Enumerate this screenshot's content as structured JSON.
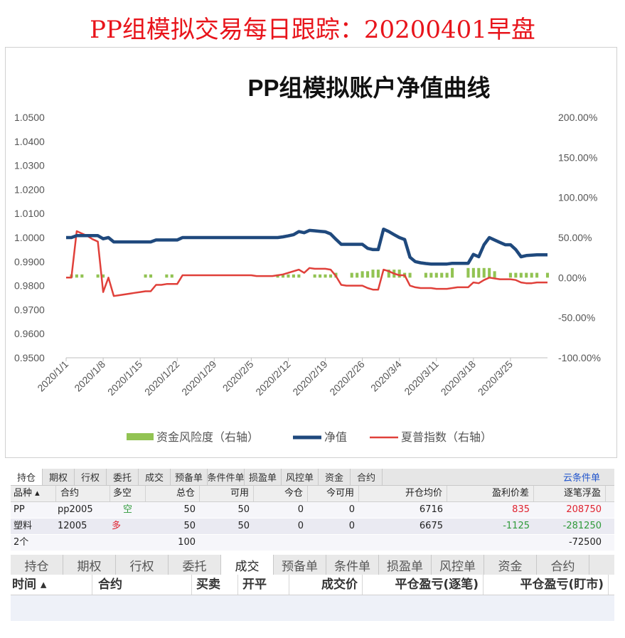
{
  "page_title": "PP组模拟交易每日跟踪：20200401早盘",
  "chart_data": {
    "type": "line",
    "title": "PP组模拟账户净值曲线",
    "y_left_ticks": [
      "1.0500",
      "1.0400",
      "1.0300",
      "1.0200",
      "1.0100",
      "1.0000",
      "0.9900",
      "0.9800",
      "0.9700",
      "0.9600",
      "0.9500"
    ],
    "y_right_ticks": [
      "200.00%",
      "150.00%",
      "100.00%",
      "50.00%",
      "0.00%",
      "-50.00%",
      "-100.00%"
    ],
    "ylim_left": [
      0.95,
      1.05
    ],
    "ylim_right": [
      -1.0,
      2.0
    ],
    "x_ticks": [
      "2020/1/1",
      "2020/1/8",
      "2020/1/15",
      "2020/1/22",
      "2020/1/29",
      "2020/2/5",
      "2020/2/12",
      "2020/2/19",
      "2020/2/26",
      "2020/3/4",
      "2020/3/11",
      "2020/3/18",
      "2020/3/25"
    ],
    "x_tick_days": [
      0,
      7,
      14,
      21,
      28,
      35,
      42,
      49,
      56,
      63,
      70,
      77,
      84
    ],
    "x_range_days": [
      0,
      91
    ],
    "series": [
      {
        "name": "资金风险度（右轴）",
        "type": "bar",
        "axis": "right",
        "color": "#92c353",
        "x": [
          1,
          2,
          3,
          6,
          7,
          15,
          16,
          19,
          20,
          40,
          41,
          42,
          43,
          44,
          47,
          48,
          49,
          50,
          51,
          54,
          55,
          56,
          57,
          58,
          59,
          61,
          62,
          63,
          64,
          65,
          68,
          69,
          70,
          71,
          72,
          73,
          76,
          77,
          78,
          79,
          80,
          81,
          84,
          85,
          86,
          87,
          88,
          89,
          91
        ],
        "values": [
          0.04,
          0.04,
          0.04,
          0.04,
          0.04,
          0.04,
          0.04,
          0.04,
          0.04,
          0.04,
          0.04,
          0.04,
          0.04,
          0.04,
          0.04,
          0.04,
          0.04,
          0.04,
          0.06,
          0.06,
          0.06,
          0.08,
          0.08,
          0.1,
          0.1,
          0.1,
          0.1,
          0.1,
          0.06,
          0.06,
          0.06,
          0.06,
          0.06,
          0.06,
          0.06,
          0.12,
          0.12,
          0.12,
          0.12,
          0.12,
          0.12,
          0.08,
          0.06,
          0.06,
          0.06,
          0.06,
          0.06,
          0.06,
          0.06
        ]
      },
      {
        "name": "净值",
        "type": "line",
        "axis": "left",
        "color": "#1f497d",
        "x": [
          0,
          1,
          2,
          3,
          4,
          5,
          6,
          7,
          8,
          9,
          10,
          11,
          12,
          13,
          14,
          15,
          16,
          17,
          18,
          19,
          20,
          21,
          22,
          23,
          24,
          25,
          26,
          27,
          28,
          29,
          30,
          31,
          32,
          33,
          34,
          35,
          36,
          37,
          38,
          39,
          40,
          41,
          42,
          43,
          44,
          45,
          46,
          47,
          48,
          49,
          50,
          51,
          52,
          53,
          54,
          55,
          56,
          57,
          58,
          59,
          60,
          61,
          62,
          63,
          64,
          65,
          66,
          67,
          68,
          69,
          70,
          71,
          72,
          73,
          74,
          75,
          76,
          77,
          78,
          79,
          80,
          81,
          82,
          83,
          84,
          85,
          86,
          87,
          88,
          89,
          90,
          91
        ],
        "values": [
          1.0,
          1.0,
          1.0008,
          1.0008,
          1.0008,
          1.0008,
          1.0008,
          0.9995,
          1.0,
          0.9982,
          0.9982,
          0.9982,
          0.9982,
          0.9982,
          0.9982,
          0.9982,
          0.9982,
          0.999,
          0.999,
          0.999,
          0.999,
          0.999,
          1.0,
          1.0,
          1.0,
          1.0,
          1.0,
          1.0,
          1.0,
          1.0,
          1.0,
          1.0,
          1.0,
          1.0,
          1.0,
          1.0,
          1.0,
          1.0,
          1.0,
          1.0,
          1.0,
          1.0003,
          1.0007,
          1.0012,
          1.0025,
          1.002,
          1.003,
          1.0028,
          1.0026,
          1.0024,
          1.0015,
          0.9993,
          0.9972,
          0.9972,
          0.9972,
          0.9972,
          0.9972,
          0.9955,
          0.995,
          0.995,
          1.0035,
          1.0025,
          1.0012,
          1.0,
          0.9992,
          0.9918,
          0.99,
          0.9895,
          0.9892,
          0.989,
          0.989,
          0.989,
          0.989,
          0.9893,
          0.9893,
          0.9893,
          0.9893,
          0.993,
          0.992,
          0.997,
          1.0,
          0.999,
          0.998,
          0.997,
          0.997,
          0.995,
          0.992,
          0.9925,
          0.9927,
          0.9928,
          0.9928,
          0.9928
        ]
      },
      {
        "name": "夏普指数（右轴）",
        "type": "line",
        "axis": "right",
        "color": "#e0403a",
        "x": [
          0,
          1,
          2,
          3,
          4,
          5,
          6,
          7,
          8,
          9,
          10,
          11,
          12,
          13,
          14,
          15,
          16,
          17,
          18,
          19,
          20,
          21,
          22,
          23,
          24,
          25,
          26,
          27,
          28,
          29,
          30,
          31,
          32,
          33,
          34,
          35,
          36,
          37,
          38,
          39,
          40,
          41,
          42,
          43,
          44,
          45,
          46,
          47,
          48,
          49,
          50,
          51,
          52,
          53,
          54,
          55,
          56,
          57,
          58,
          59,
          60,
          61,
          62,
          63,
          64,
          65,
          66,
          67,
          68,
          69,
          70,
          71,
          72,
          73,
          74,
          75,
          76,
          77,
          78,
          79,
          80,
          81,
          82,
          83,
          84,
          85,
          86,
          87,
          88,
          89,
          90,
          91
        ],
        "values": [
          0.0,
          0.0,
          0.58,
          0.55,
          0.52,
          0.48,
          0.45,
          -0.18,
          0.0,
          -0.23,
          -0.22,
          -0.21,
          -0.2,
          -0.19,
          -0.18,
          -0.17,
          -0.17,
          -0.09,
          -0.09,
          -0.08,
          -0.08,
          -0.08,
          0.03,
          0.03,
          0.03,
          0.03,
          0.03,
          0.03,
          0.03,
          0.03,
          0.03,
          0.03,
          0.03,
          0.03,
          0.03,
          0.03,
          0.02,
          0.02,
          0.02,
          0.02,
          0.03,
          0.04,
          0.06,
          0.08,
          0.1,
          0.06,
          0.12,
          0.11,
          0.11,
          0.11,
          0.1,
          0.02,
          -0.09,
          -0.1,
          -0.1,
          -0.1,
          -0.1,
          -0.13,
          -0.15,
          -0.15,
          0.1,
          0.08,
          0.05,
          0.03,
          0.03,
          -0.1,
          -0.12,
          -0.13,
          -0.13,
          -0.13,
          -0.14,
          -0.14,
          -0.14,
          -0.13,
          -0.12,
          -0.12,
          -0.12,
          -0.06,
          -0.07,
          -0.03,
          0.0,
          -0.01,
          -0.02,
          -0.02,
          -0.02,
          -0.03,
          -0.06,
          -0.07,
          -0.07,
          -0.06,
          -0.06,
          -0.06
        ]
      }
    ],
    "legend": [
      "资金风险度（右轴）",
      "净值",
      "夏普指数（右轴）"
    ],
    "legend_position": "bottom",
    "grid": false
  },
  "positions_tabs": [
    "持仓",
    "期权",
    "行权",
    "委托",
    "成交",
    "预备单",
    "条件件单",
    "损盈单",
    "风控单",
    "资金",
    "合约"
  ],
  "positions_cloud": "云条件单",
  "positions_headers": [
    "品种 ▴",
    "合约",
    "多空",
    "总仓",
    "可用",
    "今仓",
    "今可用",
    "开仓均价",
    "盈利价差",
    "逐笔浮盈"
  ],
  "positions_rows": [
    {
      "variety": "PP",
      "contract": "pp2005",
      "side": "空",
      "total": "50",
      "avail": "50",
      "today": "0",
      "today_avail": "0",
      "open_avg": "6716",
      "spread": "835",
      "float_pnl": "208750"
    },
    {
      "variety": "塑料",
      "contract": "12005",
      "side": "多",
      "total": "50",
      "avail": "50",
      "today": "0",
      "today_avail": "0",
      "open_avg": "6675",
      "spread": "-1125",
      "float_pnl": "-281250"
    }
  ],
  "positions_summary": {
    "count": "2个",
    "total": "100",
    "float_pnl": "-72500"
  },
  "trades_tabs": [
    "持仓",
    "期权",
    "行权",
    "委托",
    "成交",
    "预备单",
    "条件单",
    "损盈单",
    "风控单",
    "资金",
    "合约"
  ],
  "trades_headers": [
    "时间 ▴",
    "合约",
    "买卖",
    "开平",
    "成交价",
    "平仓盈亏(逐笔)",
    "平仓盈亏(盯市)"
  ]
}
